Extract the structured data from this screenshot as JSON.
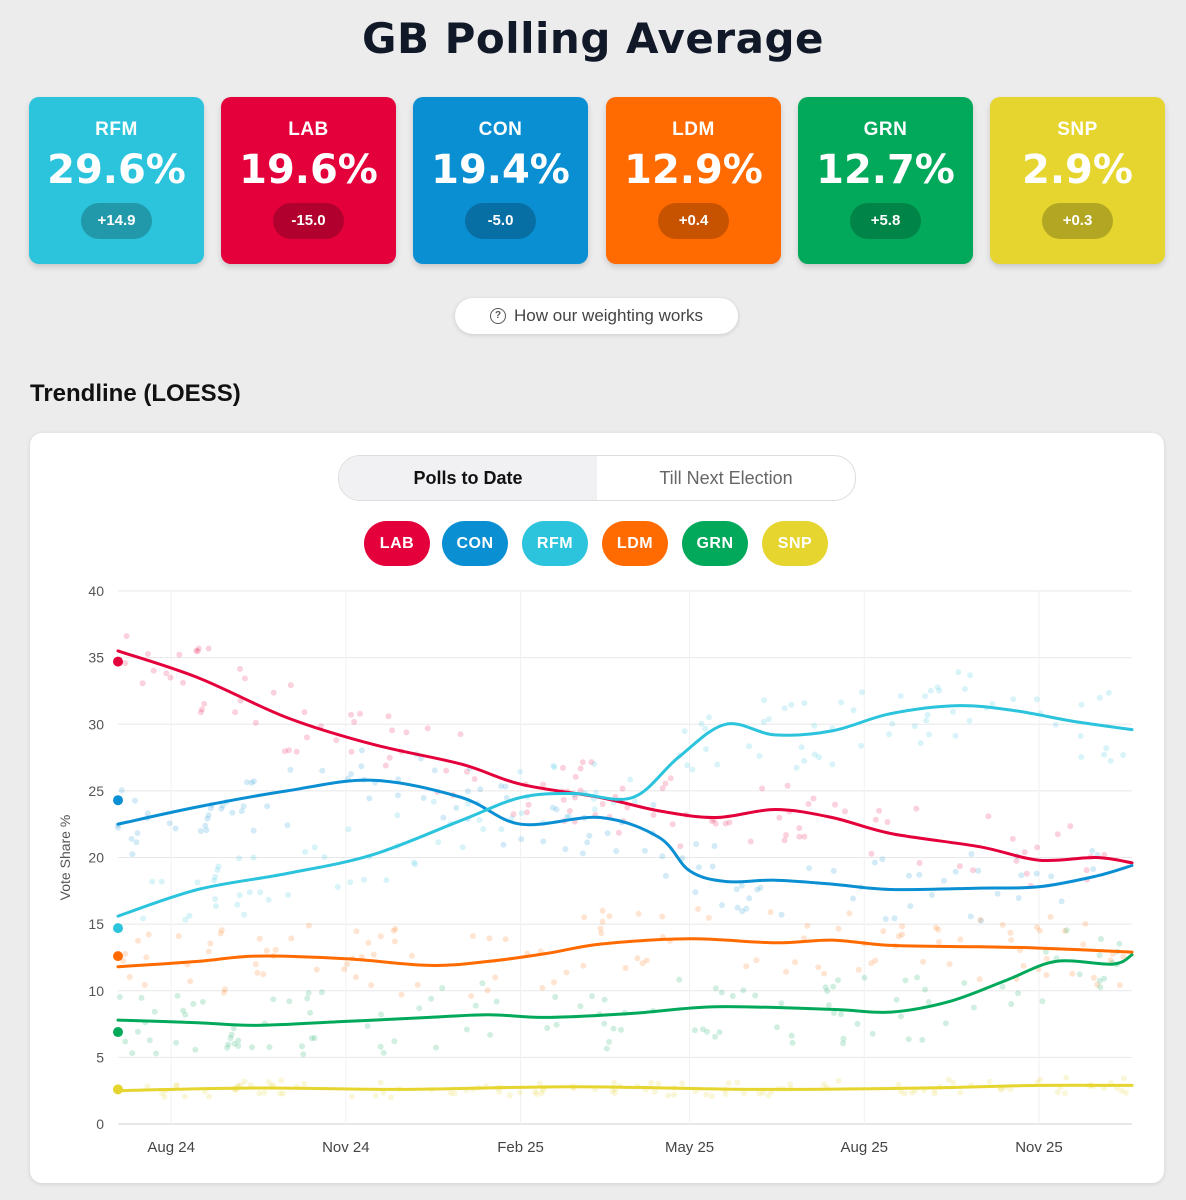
{
  "header": {
    "title": "GB Polling Average"
  },
  "cards": [
    {
      "party": "RFM",
      "value": "29.6%",
      "change": "+14.9",
      "color": "#2bc4dc"
    },
    {
      "party": "LAB",
      "value": "19.6%",
      "change": "-15.0",
      "color": "#e4003b"
    },
    {
      "party": "CON",
      "value": "19.4%",
      "change": "-5.0",
      "color": "#0b8fd3"
    },
    {
      "party": "LDM",
      "value": "12.9%",
      "change": "+0.4",
      "color": "#ff6b00"
    },
    {
      "party": "GRN",
      "value": "12.7%",
      "change": "+5.8",
      "color": "#02a95b"
    },
    {
      "party": "SNP",
      "value": "2.9%",
      "change": "+0.3",
      "color": "#e5d52e"
    }
  ],
  "weighting_button": {
    "label": "How our weighting works",
    "icon": "help-circle-icon"
  },
  "section": {
    "title": "Trendline (LOESS)"
  },
  "toggle": {
    "active": "Polls to Date",
    "inactive": "Till Next Election"
  },
  "legend": [
    {
      "label": "LAB",
      "color": "#e4003b"
    },
    {
      "label": "CON",
      "color": "#0b8fd3"
    },
    {
      "label": "RFM",
      "color": "#2bc4dc"
    },
    {
      "label": "LDM",
      "color": "#ff6b00"
    },
    {
      "label": "GRN",
      "color": "#02a95b"
    },
    {
      "label": "SNP",
      "color": "#e5d52e"
    }
  ],
  "chart_data": {
    "type": "line",
    "ylabel": "Vote Share %",
    "xlabel": "",
    "ylim": [
      0,
      40
    ],
    "yticks": [
      0,
      5,
      10,
      15,
      20,
      25,
      30,
      35,
      40
    ],
    "xlim": [
      "2024-07-04",
      "2025-12-20"
    ],
    "xticks": [
      {
        "date": "2024-08-01",
        "label": "Aug 24"
      },
      {
        "date": "2024-11-01",
        "label": "Nov 24"
      },
      {
        "date": "2025-02-01",
        "label": "Feb 25"
      },
      {
        "date": "2025-05-01",
        "label": "May 25"
      },
      {
        "date": "2025-08-01",
        "label": "Aug 25"
      },
      {
        "date": "2025-11-01",
        "label": "Nov 25"
      }
    ],
    "grid": true,
    "series": [
      {
        "name": "LAB",
        "color": "#e4003b",
        "start": 34.7,
        "points": [
          [
            "2024-07-04",
            35.5
          ],
          [
            "2024-08-15",
            33.5
          ],
          [
            "2024-10-01",
            30.5
          ],
          [
            "2024-11-15",
            28.5
          ],
          [
            "2025-01-01",
            27
          ],
          [
            "2025-02-01",
            25.5
          ],
          [
            "2025-03-15",
            24.5
          ],
          [
            "2025-04-15",
            23.5
          ],
          [
            "2025-05-15",
            23
          ],
          [
            "2025-06-15",
            23.6
          ],
          [
            "2025-07-15",
            23
          ],
          [
            "2025-08-15",
            21.8
          ],
          [
            "2025-10-01",
            20.8
          ],
          [
            "2025-11-01",
            19.8
          ],
          [
            "2025-12-01",
            20
          ],
          [
            "2025-12-20",
            19.6
          ]
        ]
      },
      {
        "name": "CON",
        "color": "#0b8fd3",
        "start": 24.3,
        "points": [
          [
            "2024-07-04",
            22.5
          ],
          [
            "2024-08-15",
            23.8
          ],
          [
            "2024-10-01",
            25
          ],
          [
            "2024-11-15",
            25.8
          ],
          [
            "2025-01-01",
            24.5
          ],
          [
            "2025-02-01",
            22.5
          ],
          [
            "2025-03-15",
            23
          ],
          [
            "2025-04-15",
            21.5
          ],
          [
            "2025-05-01",
            19
          ],
          [
            "2025-05-20",
            18.2
          ],
          [
            "2025-06-15",
            18.3
          ],
          [
            "2025-07-15",
            18
          ],
          [
            "2025-08-15",
            17.6
          ],
          [
            "2025-10-01",
            17.7
          ],
          [
            "2025-11-01",
            17.8
          ],
          [
            "2025-12-01",
            18.6
          ],
          [
            "2025-12-20",
            19.4
          ]
        ]
      },
      {
        "name": "RFM",
        "color": "#2bc4dc",
        "start": 14.7,
        "points": [
          [
            "2024-07-04",
            15.6
          ],
          [
            "2024-08-15",
            17.6
          ],
          [
            "2024-10-01",
            18.8
          ],
          [
            "2024-11-15",
            20.2
          ],
          [
            "2025-01-01",
            22.8
          ],
          [
            "2025-02-01",
            24.5
          ],
          [
            "2025-03-01",
            24.8
          ],
          [
            "2025-04-01",
            24.5
          ],
          [
            "2025-04-25",
            27.5
          ],
          [
            "2025-05-20",
            30
          ],
          [
            "2025-06-15",
            29.2
          ],
          [
            "2025-07-15",
            29.5
          ],
          [
            "2025-08-15",
            30.8
          ],
          [
            "2025-09-20",
            31.4
          ],
          [
            "2025-10-20",
            31
          ],
          [
            "2025-11-20",
            30.2
          ],
          [
            "2025-12-20",
            29.6
          ]
        ]
      },
      {
        "name": "LDM",
        "color": "#ff6b00",
        "start": 12.6,
        "points": [
          [
            "2024-07-04",
            11.8
          ],
          [
            "2024-08-15",
            12.2
          ],
          [
            "2024-09-15",
            12.6
          ],
          [
            "2024-11-01",
            12.4
          ],
          [
            "2024-12-15",
            11.9
          ],
          [
            "2025-01-15",
            12.2
          ],
          [
            "2025-02-15",
            12.8
          ],
          [
            "2025-03-15",
            13.5
          ],
          [
            "2025-05-01",
            13.9
          ],
          [
            "2025-06-15",
            13.6
          ],
          [
            "2025-07-15",
            13.8
          ],
          [
            "2025-08-15",
            13.4
          ],
          [
            "2025-10-01",
            13.3
          ],
          [
            "2025-11-01",
            13.2
          ],
          [
            "2025-12-20",
            12.9
          ]
        ]
      },
      {
        "name": "GRN",
        "color": "#02a95b",
        "start": 6.9,
        "points": [
          [
            "2024-07-04",
            7.8
          ],
          [
            "2024-08-15",
            7.6
          ],
          [
            "2024-09-15",
            7.4
          ],
          [
            "2024-11-01",
            7.7
          ],
          [
            "2024-12-15",
            8
          ],
          [
            "2025-01-15",
            8.2
          ],
          [
            "2025-02-15",
            8
          ],
          [
            "2025-04-01",
            8.3
          ],
          [
            "2025-05-15",
            8.8
          ],
          [
            "2025-07-15",
            8.6
          ],
          [
            "2025-08-15",
            8.4
          ],
          [
            "2025-09-15",
            9.2
          ],
          [
            "2025-10-15",
            10.8
          ],
          [
            "2025-11-10",
            12.2
          ],
          [
            "2025-12-10",
            12
          ],
          [
            "2025-12-20",
            12.7
          ]
        ]
      },
      {
        "name": "SNP",
        "color": "#e5d52e",
        "start": 2.6,
        "points": [
          [
            "2024-07-04",
            2.5
          ],
          [
            "2024-09-15",
            2.7
          ],
          [
            "2024-12-01",
            2.6
          ],
          [
            "2025-03-01",
            2.8
          ],
          [
            "2025-06-01",
            2.6
          ],
          [
            "2025-09-01",
            2.7
          ],
          [
            "2025-11-01",
            2.9
          ],
          [
            "2025-12-20",
            2.9
          ]
        ]
      }
    ]
  }
}
